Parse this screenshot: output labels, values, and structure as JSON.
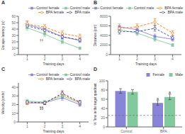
{
  "chart_data": [
    {
      "type": "line",
      "title": "A",
      "x_label": "Training days",
      "y_label": "Escape latency (s)",
      "annotation": "††",
      "x": [
        1,
        2,
        3,
        4
      ],
      "xlim": [
        0.5,
        4.5
      ],
      "xticks": [
        1,
        2,
        3,
        4
      ],
      "ylim": [
        0,
        60
      ],
      "yticks": [
        0,
        10,
        20,
        30,
        40,
        50,
        60
      ],
      "grid": false,
      "legend": "upper right",
      "series": [
        {
          "name": "Control female",
          "color": "#8884d8",
          "marker": "square",
          "line_style": "solid",
          "values": [
            47,
            40,
            28,
            22
          ],
          "errors": [
            5,
            4,
            4,
            3
          ]
        },
        {
          "name": "Control male",
          "color": "#82ca9d",
          "marker": "square",
          "line_style": "solid",
          "values": [
            42,
            32,
            20,
            10
          ],
          "errors": [
            4,
            4,
            3,
            2
          ]
        },
        {
          "name": "BPA female",
          "color": "#ff7300",
          "marker": "circle",
          "line_style": "dashed",
          "values": [
            48,
            43,
            33,
            28
          ],
          "errors": [
            5,
            4,
            4,
            4
          ]
        },
        {
          "name": "BPA male",
          "color": "#413ea0",
          "marker": "circle",
          "line_style": "dashed",
          "values": [
            45,
            38,
            28,
            23
          ],
          "errors": [
            4,
            4,
            3,
            3
          ]
        }
      ]
    },
    {
      "type": "line",
      "title": "B",
      "x_label": "Training days",
      "y_label": "Distance (cm)",
      "x": [
        1,
        2,
        3,
        4
      ],
      "xlim": [
        0.5,
        4.5
      ],
      "xticks": [
        1,
        2,
        3,
        4
      ],
      "ylim": [
        0,
        8000
      ],
      "yticks": [
        0,
        2000,
        4000,
        6000,
        8000
      ],
      "grid": false,
      "legend": "upper right",
      "series": [
        {
          "name": "Control female",
          "color": "#8884d8",
          "marker": "square",
          "line_style": "solid",
          "values": [
            5800,
            5200,
            3800,
            3200
          ],
          "errors": [
            600,
            500,
            500,
            400
          ]
        },
        {
          "name": "Control male",
          "color": "#82ca9d",
          "marker": "square",
          "line_style": "solid",
          "values": [
            5200,
            4500,
            3200,
            2000
          ],
          "errors": [
            500,
            500,
            400,
            300
          ]
        },
        {
          "name": "BPA female",
          "color": "#ff7300",
          "marker": "circle",
          "line_style": "dashed",
          "values": [
            5500,
            5800,
            6800,
            4500
          ],
          "errors": [
            600,
            600,
            700,
            500
          ]
        },
        {
          "name": "BPA male",
          "color": "#413ea0",
          "marker": "circle",
          "line_style": "dashed",
          "values": [
            4800,
            4800,
            5500,
            3500
          ],
          "errors": [
            500,
            500,
            600,
            400
          ]
        }
      ]
    },
    {
      "type": "line",
      "title": "C",
      "x_label": "Training days",
      "y_label": "Velocity (cm/s)",
      "annotation": "§§",
      "x": [
        1,
        2,
        3,
        4
      ],
      "xlim": [
        0.5,
        4.5
      ],
      "xticks": [
        1,
        2,
        3,
        4
      ],
      "ylim": [
        0,
        45
      ],
      "yticks": [
        0,
        10,
        20,
        30,
        40
      ],
      "grid": false,
      "legend": "upper right",
      "series": [
        {
          "name": "Control female",
          "color": "#8884d8",
          "marker": "square",
          "line_style": "solid",
          "values": [
            22,
            22,
            28,
            20
          ],
          "errors": [
            2,
            2,
            3,
            2
          ]
        },
        {
          "name": "Control male",
          "color": "#82ca9d",
          "marker": "square",
          "line_style": "solid",
          "values": [
            24,
            23,
            30,
            22
          ],
          "errors": [
            2,
            2,
            3,
            2
          ]
        },
        {
          "name": "BPA female",
          "color": "#ff7300",
          "marker": "circle",
          "line_style": "dashed",
          "values": [
            22,
            22,
            32,
            22
          ],
          "errors": [
            2,
            2,
            3,
            2
          ]
        },
        {
          "name": "BPA male",
          "color": "#413ea0",
          "marker": "circle",
          "line_style": "dashed",
          "values": [
            23,
            22,
            33,
            23
          ],
          "errors": [
            2,
            2,
            3,
            2
          ]
        }
      ]
    },
    {
      "type": "bar",
      "title": "D",
      "y_label": "% Time in the target quadrant",
      "categories": [
        "Control",
        "BPA"
      ],
      "ylim": [
        0,
        100
      ],
      "yticks": [
        0,
        20,
        40,
        60,
        80,
        100
      ],
      "chance_line": 25,
      "grid": false,
      "legend": "upper right",
      "series": [
        {
          "name": "Female",
          "color": "#8884d8",
          "values": [
            78,
            52
          ],
          "errors": [
            5,
            5
          ]
        },
        {
          "name": "Male",
          "color": "#82ca9d",
          "values": [
            76,
            65
          ],
          "errors": [
            5,
            6
          ]
        }
      ],
      "annotations": [
        {
          "text": "a",
          "category": "BPA",
          "series": "Female"
        },
        {
          "text": "a",
          "category": "BPA",
          "series": "Male"
        }
      ]
    }
  ]
}
